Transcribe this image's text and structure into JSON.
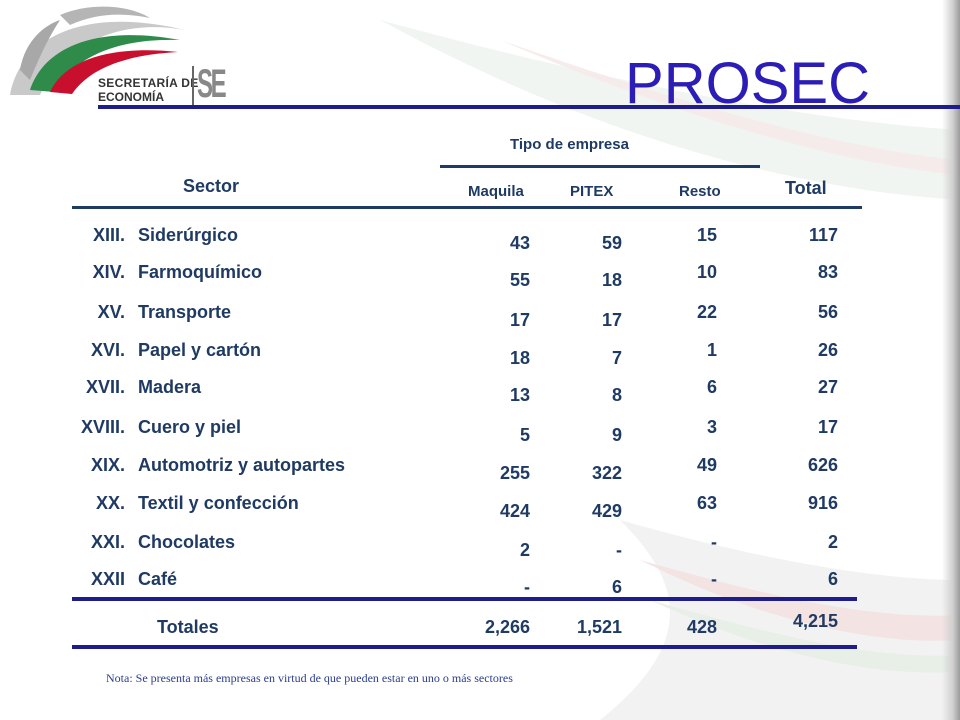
{
  "logo": {
    "line1": "SECRETARÍA DE",
    "line2": "ECONOMÍA",
    "mark": "SE"
  },
  "title": "PROSEC",
  "header": {
    "tipo": "Tipo de empresa",
    "sector": "Sector",
    "total": "Total",
    "maquila": "Maquila",
    "pitex": "PITEX",
    "resto": "Resto"
  },
  "rows": [
    {
      "roman": "XIII.",
      "name": "Siderúrgico",
      "maquila": "43",
      "pitex": "59",
      "resto": "15",
      "total": "117"
    },
    {
      "roman": "XIV.",
      "name": "Farmoquímico",
      "maquila": "55",
      "pitex": "18",
      "resto": "10",
      "total": "83"
    },
    {
      "roman": "XV.",
      "name": "Transporte",
      "maquila": "17",
      "pitex": "17",
      "resto": "22",
      "total": "56"
    },
    {
      "roman": "XVI.",
      "name": "Papel y cartón",
      "maquila": "18",
      "pitex": "7",
      "resto": "1",
      "total": "26"
    },
    {
      "roman": "XVII.",
      "name": "Madera",
      "maquila": "13",
      "pitex": "8",
      "resto": "6",
      "total": "27"
    },
    {
      "roman": "XVIII.",
      "name": "Cuero y piel",
      "maquila": "5",
      "pitex": "9",
      "resto": "3",
      "total": "17"
    },
    {
      "roman": "XIX.",
      "name": "Automotriz y autopartes",
      "maquila": "255",
      "pitex": "322",
      "resto": "49",
      "total": "626"
    },
    {
      "roman": "XX.",
      "name": "Textil y confección",
      "maquila": "424",
      "pitex": "429",
      "resto": "63",
      "total": "916"
    },
    {
      "roman": "XXI.",
      "name": "Chocolates",
      "maquila": "2",
      "pitex": "-",
      "resto": "-",
      "total": "2"
    },
    {
      "roman": "XXII",
      "name": "Café",
      "maquila": "-",
      "pitex": "6",
      "resto": "-",
      "total": "6"
    }
  ],
  "totals": {
    "label": "Totales",
    "maquila": "2,266",
    "pitex": "1,521",
    "resto": "428",
    "total": "4,215"
  },
  "note": "Nota: Se presenta más empresas en virtud de que pueden estar en uno o más sectores"
}
